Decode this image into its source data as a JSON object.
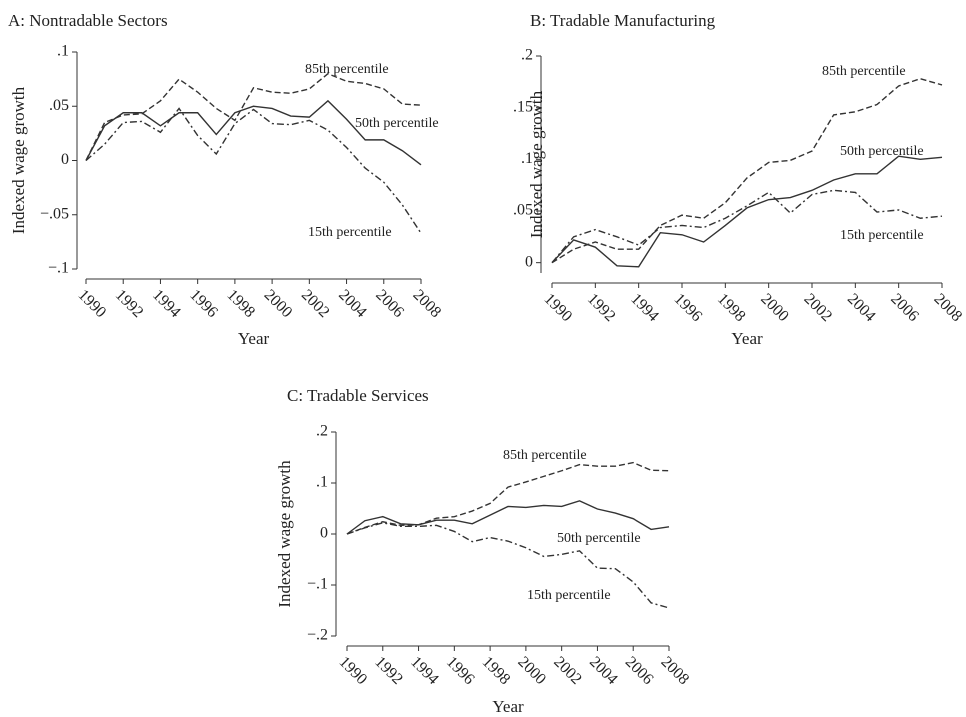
{
  "chart_data": [
    {
      "type": "line",
      "title": "A: Nontradable Sectors",
      "xlabel": "Year",
      "ylabel": "Indexed wage growth",
      "x": [
        1990,
        1991,
        1992,
        1993,
        1994,
        1995,
        1996,
        1997,
        1998,
        1999,
        2000,
        2001,
        2002,
        2003,
        2004,
        2005,
        2006,
        2007,
        2008
      ],
      "xlim": [
        1990,
        2008
      ],
      "xticks": [
        1990,
        1992,
        1994,
        1996,
        1998,
        2000,
        2002,
        2004,
        2006,
        2008
      ],
      "ylim": [
        -0.1,
        0.1
      ],
      "yticks": [
        {
          "value": -0.1,
          "label": "−.1"
        },
        {
          "value": -0.05,
          "label": "−.05"
        },
        0,
        {
          "value": 0.05,
          "label": ".05"
        },
        {
          "value": 0.1,
          "label": ".1"
        }
      ],
      "series": [
        {
          "name": "85th percentile",
          "color": "#333333",
          "linestyle": "dashed",
          "values": [
            0,
            0.035,
            0.042,
            0.043,
            0.055,
            0.075,
            0.063,
            0.048,
            0.037,
            0.067,
            0.063,
            0.062,
            0.066,
            0.08,
            0.073,
            0.071,
            0.066,
            0.052,
            0.051
          ]
        },
        {
          "name": "50th percentile",
          "color": "#333333",
          "linestyle": "solid",
          "values": [
            0,
            0.032,
            0.044,
            0.044,
            0.032,
            0.044,
            0.044,
            0.024,
            0.044,
            0.05,
            0.048,
            0.041,
            0.04,
            0.055,
            0.038,
            0.019,
            0.019,
            0.009,
            -0.004
          ]
        },
        {
          "name": "15th percentile",
          "color": "#333333",
          "linestyle": "dashdot",
          "values": [
            0,
            0.015,
            0.035,
            0.036,
            0.026,
            0.048,
            0.023,
            0.006,
            0.034,
            0.047,
            0.034,
            0.033,
            0.037,
            0.028,
            0.012,
            -0.007,
            -0.02,
            -0.041,
            -0.067
          ]
        }
      ]
    },
    {
      "type": "line",
      "title": "B: Tradable Manufacturing",
      "xlabel": "Year",
      "ylabel": "Indexed wage growth",
      "x": [
        1990,
        1991,
        1992,
        1993,
        1994,
        1995,
        1996,
        1997,
        1998,
        1999,
        2000,
        2001,
        2002,
        2003,
        2004,
        2005,
        2006,
        2007,
        2008
      ],
      "xlim": [
        1990,
        2008
      ],
      "xticks": [
        1990,
        1992,
        1994,
        1996,
        1998,
        2000,
        2002,
        2004,
        2006,
        2008
      ],
      "ylim": [
        -0.01,
        0.2
      ],
      "yticks": [
        0,
        {
          "value": 0.05,
          "label": ".05"
        },
        {
          "value": 0.1,
          "label": ".1"
        },
        {
          "value": 0.15,
          "label": ".15"
        },
        {
          "value": 0.2,
          "label": ".2"
        }
      ],
      "series": [
        {
          "name": "85th percentile",
          "color": "#333333",
          "linestyle": "dashed",
          "values": [
            0,
            0.013,
            0.02,
            0.013,
            0.013,
            0.036,
            0.046,
            0.043,
            0.058,
            0.082,
            0.097,
            0.099,
            0.108,
            0.143,
            0.146,
            0.153,
            0.171,
            0.178,
            0.172
          ]
        },
        {
          "name": "50th percentile",
          "color": "#333333",
          "linestyle": "solid",
          "values": [
            0,
            0.022,
            0.015,
            -0.003,
            -0.004,
            0.029,
            0.027,
            0.02,
            0.036,
            0.053,
            0.061,
            0.063,
            0.07,
            0.08,
            0.086,
            0.086,
            0.103,
            0.1,
            0.102
          ]
        },
        {
          "name": "15th percentile",
          "color": "#333333",
          "linestyle": "dashdot",
          "values": [
            0,
            0.025,
            0.032,
            0.025,
            0.017,
            0.034,
            0.036,
            0.034,
            0.043,
            0.055,
            0.068,
            0.048,
            0.066,
            0.07,
            0.068,
            0.049,
            0.051,
            0.043,
            0.045
          ]
        }
      ]
    },
    {
      "type": "line",
      "title": "C: Tradable Services",
      "xlabel": "Year",
      "ylabel": "Indexed wage growth",
      "x": [
        1990,
        1991,
        1992,
        1993,
        1994,
        1995,
        1996,
        1997,
        1998,
        1999,
        2000,
        2001,
        2002,
        2003,
        2004,
        2005,
        2006,
        2007,
        2008
      ],
      "xlim": [
        1990,
        2008
      ],
      "xticks": [
        1990,
        1992,
        1994,
        1996,
        1998,
        2000,
        2002,
        2004,
        2006,
        2008
      ],
      "ylim": [
        -0.2,
        0.2
      ],
      "yticks": [
        {
          "value": -0.2,
          "label": "−.2"
        },
        {
          "value": -0.1,
          "label": "−.1"
        },
        0,
        {
          "value": 0.1,
          "label": ".1"
        },
        {
          "value": 0.2,
          "label": ".2"
        }
      ],
      "series": [
        {
          "name": "85th percentile",
          "color": "#333333",
          "linestyle": "dashed",
          "values": [
            0,
            0.013,
            0.024,
            0.017,
            0.018,
            0.031,
            0.034,
            0.045,
            0.06,
            0.092,
            0.102,
            0.113,
            0.124,
            0.136,
            0.133,
            0.133,
            0.14,
            0.125,
            0.124
          ]
        },
        {
          "name": "50th percentile",
          "color": "#333333",
          "linestyle": "solid",
          "values": [
            0,
            0.026,
            0.034,
            0.02,
            0.018,
            0.027,
            0.027,
            0.02,
            0.037,
            0.054,
            0.052,
            0.056,
            0.054,
            0.065,
            0.049,
            0.041,
            0.03,
            0.009,
            0.014
          ]
        },
        {
          "name": "15th percentile",
          "color": "#333333",
          "linestyle": "dashdot",
          "values": [
            0,
            0.012,
            0.022,
            0.015,
            0.015,
            0.017,
            0.005,
            -0.015,
            -0.007,
            -0.014,
            -0.027,
            -0.044,
            -0.04,
            -0.033,
            -0.067,
            -0.068,
            -0.094,
            -0.135,
            -0.145
          ]
        }
      ]
    }
  ]
}
